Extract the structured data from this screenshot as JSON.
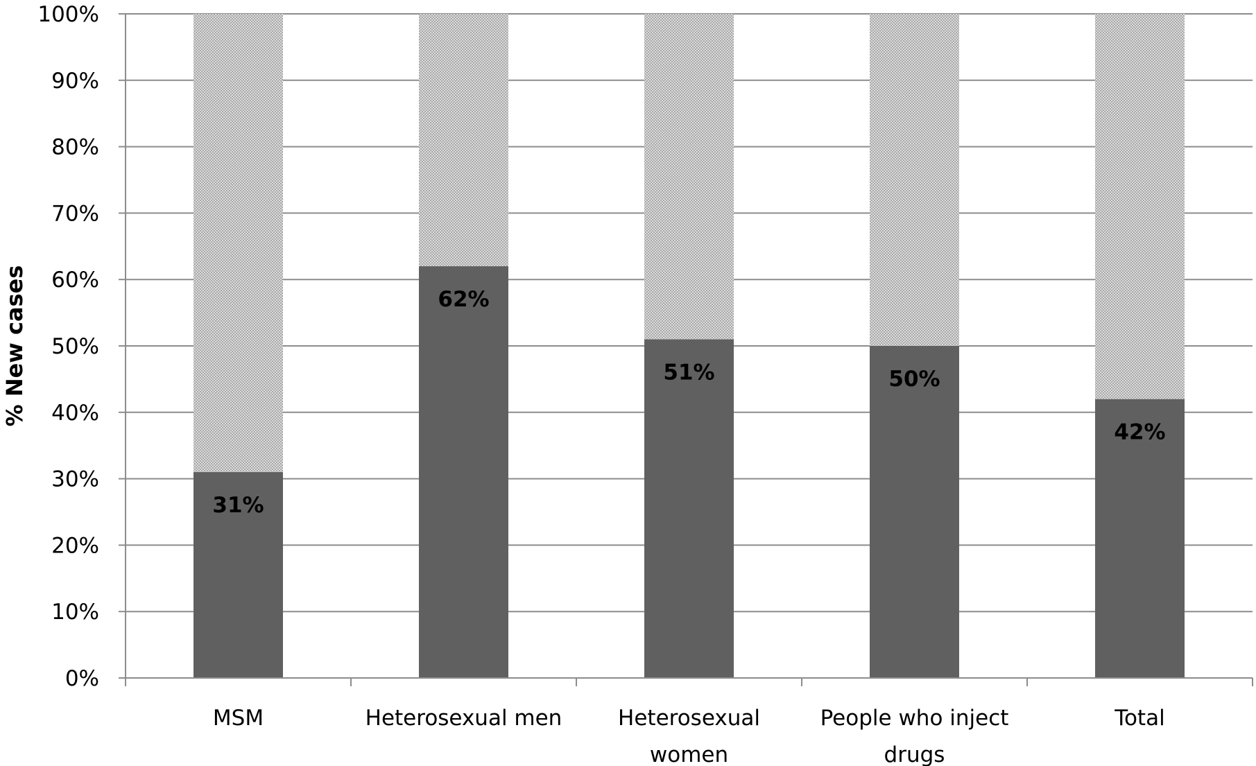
{
  "chart_data": {
    "type": "bar",
    "stacked": true,
    "categories": [
      "MSM",
      "Heterosexual men",
      "Heterosexual women",
      "People who inject drugs",
      "Total"
    ],
    "category_lines": [
      [
        "MSM"
      ],
      [
        "Heterosexual men"
      ],
      [
        "Heterosexual",
        "women"
      ],
      [
        "People who inject",
        "drugs"
      ],
      [
        "Total"
      ]
    ],
    "series": [
      {
        "values": [
          31,
          62,
          51,
          50,
          42
        ],
        "color": "#606060",
        "data_labels": [
          "31%",
          "62%",
          "51%",
          "50%",
          "42%"
        ]
      },
      {
        "values": [
          69,
          38,
          49,
          50,
          58
        ],
        "color": "#c8c8c8",
        "pattern": "fine-checker"
      }
    ],
    "title": "",
    "xlabel": "",
    "ylabel": "% New  cases",
    "ylim": [
      0,
      100
    ],
    "yticks": [
      0,
      10,
      20,
      30,
      40,
      50,
      60,
      70,
      80,
      90,
      100
    ],
    "ytick_labels": [
      "0%",
      "10%",
      "20%",
      "30%",
      "40%",
      "50%",
      "60%",
      "70%",
      "80%",
      "90%",
      "100%"
    ],
    "grid": true,
    "legend": "none"
  }
}
